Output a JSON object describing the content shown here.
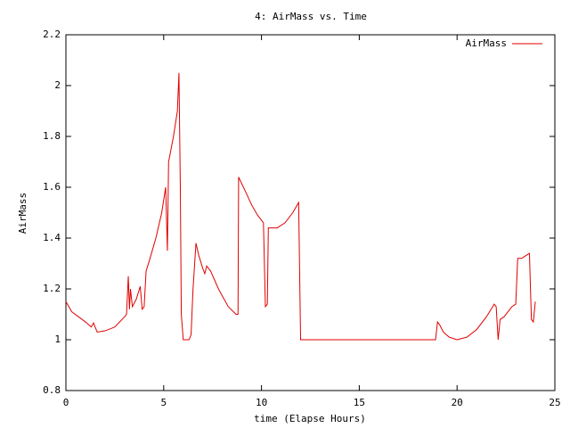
{
  "chart_data": {
    "type": "line",
    "title": "4: AirMass vs. Time",
    "xlabel": "time (Elapse Hours)",
    "ylabel": "AirMass",
    "x": [
      0,
      0.3,
      1.0,
      1.3,
      1.41,
      1.6,
      2.0,
      2.5,
      3.0,
      3.1,
      3.19,
      3.25,
      3.3,
      3.4,
      3.6,
      3.8,
      3.9,
      4.0,
      4.1,
      4.3,
      4.6,
      4.9,
      5.1,
      5.19,
      5.25,
      5.5,
      5.7,
      5.78,
      5.85,
      5.9,
      6.0,
      6.3,
      6.4,
      6.5,
      6.65,
      6.8,
      7.0,
      7.1,
      7.2,
      7.4,
      7.8,
      8.3,
      8.7,
      8.8,
      8.83,
      9.2,
      9.5,
      9.8,
      10.0,
      10.1,
      10.2,
      10.3,
      10.35,
      10.8,
      11.2,
      11.6,
      11.9,
      12.0,
      18.9,
      19.0,
      19.1,
      19.3,
      19.6,
      20.0,
      20.5,
      21.0,
      21.5,
      21.9,
      22.0,
      22.1,
      22.2,
      22.4,
      22.6,
      22.8,
      23.0,
      23.1,
      23.3,
      23.5,
      23.7,
      23.8,
      23.9,
      24.0
    ],
    "series": [
      {
        "name": "AirMass",
        "color": "#e00000",
        "values": [
          1.15,
          1.11,
          1.07,
          1.05,
          1.066,
          1.03,
          1.035,
          1.05,
          1.09,
          1.1,
          1.25,
          1.12,
          1.2,
          1.13,
          1.16,
          1.21,
          1.12,
          1.13,
          1.27,
          1.32,
          1.4,
          1.5,
          1.6,
          1.35,
          1.7,
          1.8,
          1.9,
          2.05,
          1.6,
          1.1,
          1.0,
          1.0,
          1.02,
          1.2,
          1.38,
          1.33,
          1.28,
          1.26,
          1.29,
          1.27,
          1.2,
          1.13,
          1.1,
          1.1,
          1.64,
          1.58,
          1.53,
          1.49,
          1.47,
          1.46,
          1.13,
          1.14,
          1.44,
          1.44,
          1.46,
          1.5,
          1.54,
          1.0,
          1.0,
          1.07,
          1.06,
          1.03,
          1.01,
          1.0,
          1.01,
          1.04,
          1.09,
          1.14,
          1.13,
          1.0,
          1.08,
          1.09,
          1.11,
          1.13,
          1.14,
          1.32,
          1.32,
          1.33,
          1.34,
          1.08,
          1.07,
          1.15
        ]
      }
    ],
    "xlim": [
      0,
      25
    ],
    "xticks": [
      0,
      5,
      10,
      15,
      20,
      25
    ],
    "ylim": [
      0.8,
      2.2
    ],
    "yticks": [
      0.8,
      1,
      1.2,
      1.4,
      1.6,
      1.8,
      2,
      2.2
    ],
    "legend": "top-right"
  }
}
